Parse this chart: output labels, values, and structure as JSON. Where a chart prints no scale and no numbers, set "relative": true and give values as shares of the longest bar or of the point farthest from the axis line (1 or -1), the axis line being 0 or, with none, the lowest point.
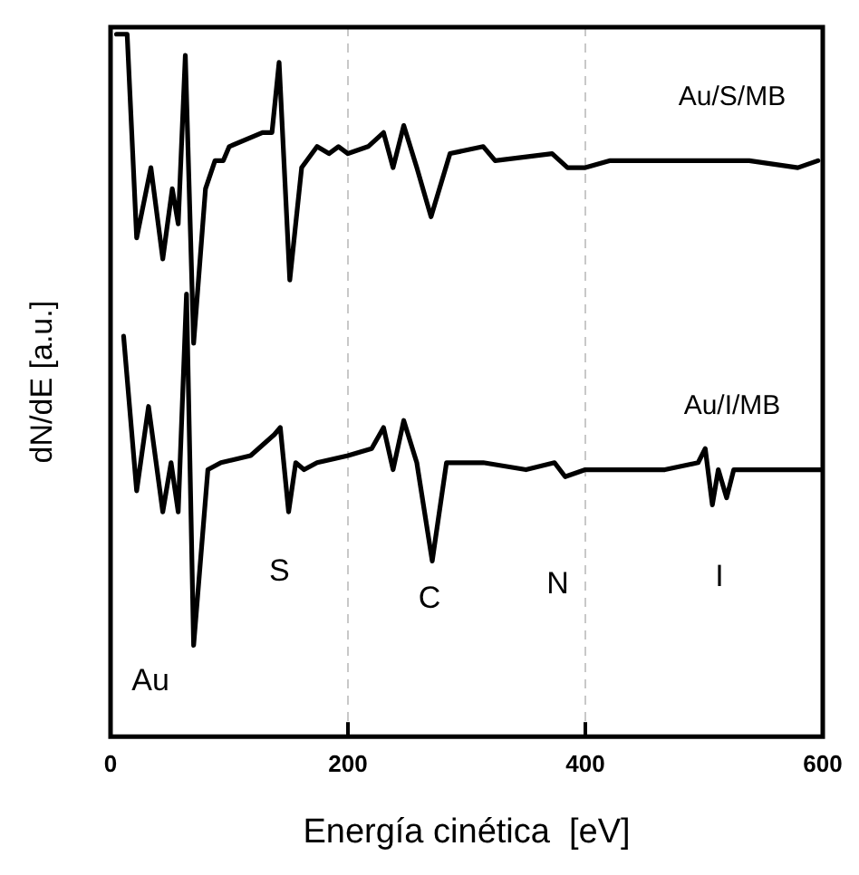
{
  "chart_data": {
    "type": "line",
    "xlabel": "Energía cinética  [eV]",
    "ylabel": "dN/dE [a.u.]",
    "relative": true,
    "xlim": [
      0,
      600
    ],
    "xticks": [
      0,
      200,
      400,
      600
    ],
    "grid": "x",
    "legend": false,
    "marker": "none",
    "line_style": "solid",
    "series": [
      {
        "name": "Au/S/MB",
        "color": "#000000",
        "x": [
          5,
          14,
          22,
          34,
          44,
          52,
          57,
          63,
          70,
          80,
          88,
          95,
          100,
          128,
          136,
          142,
          151,
          161,
          174,
          184,
          192,
          200,
          217,
          230,
          238,
          247,
          258,
          270,
          286,
          314,
          324,
          372,
          385,
          400,
          421,
          451,
          487,
          538,
          579,
          596
        ],
        "values": [
          1.0,
          1.0,
          0.71,
          0.81,
          0.68,
          0.78,
          0.73,
          0.97,
          0.56,
          0.78,
          0.82,
          0.82,
          0.84,
          0.86,
          0.86,
          0.96,
          0.65,
          0.81,
          0.84,
          0.83,
          0.84,
          0.83,
          0.84,
          0.86,
          0.81,
          0.87,
          0.81,
          0.74,
          0.83,
          0.84,
          0.82,
          0.83,
          0.81,
          0.81,
          0.82,
          0.82,
          0.82,
          0.82,
          0.81,
          0.82
        ]
      },
      {
        "name": "Au/I/MB",
        "color": "#000000",
        "x": [
          11,
          22,
          32,
          44,
          51,
          57,
          64,
          70,
          82,
          93,
          118,
          138,
          143,
          150,
          156,
          163,
          174,
          200,
          220,
          230,
          238,
          247,
          258,
          271,
          283,
          314,
          350,
          374,
          383,
          400,
          436,
          467,
          495,
          501,
          507,
          512,
          519,
          525,
          558,
          598
        ],
        "values": [
          0.57,
          0.35,
          0.47,
          0.32,
          0.39,
          0.32,
          0.63,
          0.13,
          0.38,
          0.39,
          0.4,
          0.43,
          0.44,
          0.32,
          0.39,
          0.38,
          0.39,
          0.4,
          0.41,
          0.44,
          0.38,
          0.45,
          0.39,
          0.25,
          0.39,
          0.39,
          0.38,
          0.39,
          0.37,
          0.38,
          0.38,
          0.38,
          0.39,
          0.41,
          0.33,
          0.38,
          0.34,
          0.38,
          0.38,
          0.38
        ]
      }
    ],
    "annotations": [
      "Au",
      "S",
      "C",
      "N",
      "I"
    ]
  }
}
